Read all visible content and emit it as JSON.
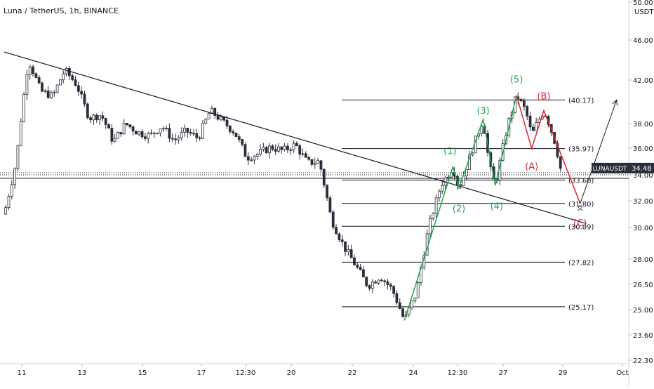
{
  "header": {
    "title": "Luna / TetherUS, 1h, BINANCE"
  },
  "chart_data": {
    "type": "candlestick",
    "symbol": "LUNAUSDT",
    "last_price": "34.48",
    "currency": "USDT",
    "price_axis": {
      "unit": "USDT",
      "tick_labels": [
        "50.00",
        "46.00",
        "42.00",
        "38.00",
        "36.00",
        "34.00",
        "32.00",
        "30.00",
        "28.00",
        "26.50",
        "25.00",
        "23.60",
        "22.30"
      ],
      "ylim": [
        22.0,
        50.5
      ],
      "scale": "log"
    },
    "time_axis": {
      "tick_labels": [
        "11",
        "13",
        "15",
        "17",
        "12:30",
        "20",
        "22",
        "24",
        "12:30",
        "27",
        "29",
        "Oct"
      ]
    },
    "price_path": [
      [
        0,
        31.0
      ],
      [
        4,
        35.0
      ],
      [
        8,
        44.0
      ],
      [
        12,
        41.0
      ],
      [
        16,
        40.5
      ],
      [
        20,
        43.0
      ],
      [
        24,
        41.5
      ],
      [
        28,
        38.5
      ],
      [
        32,
        38.8
      ],
      [
        36,
        36.5
      ],
      [
        40,
        38.0
      ],
      [
        44,
        37.3
      ],
      [
        48,
        37.0
      ],
      [
        52,
        37.8
      ],
      [
        56,
        36.6
      ],
      [
        60,
        37.4
      ],
      [
        64,
        36.8
      ],
      [
        68,
        39.2
      ],
      [
        72,
        38.2
      ],
      [
        76,
        37.3
      ],
      [
        80,
        35.3
      ],
      [
        84,
        35.6
      ],
      [
        88,
        36.1
      ],
      [
        92,
        35.8
      ],
      [
        96,
        36.3
      ],
      [
        100,
        34.9
      ],
      [
        104,
        35.0
      ],
      [
        108,
        30.5
      ],
      [
        112,
        28.8
      ],
      [
        116,
        27.6
      ],
      [
        120,
        26.4
      ],
      [
        124,
        27.0
      ],
      [
        128,
        26.2
      ],
      [
        132,
        24.4
      ],
      [
        136,
        26.0
      ],
      [
        140,
        30.0
      ],
      [
        144,
        33.2
      ],
      [
        148,
        34.6
      ],
      [
        150,
        33.0
      ],
      [
        154,
        35.6
      ],
      [
        158,
        38.4
      ],
      [
        160,
        34.7
      ],
      [
        162,
        33.2
      ],
      [
        166,
        37.8
      ],
      [
        169,
        40.6
      ],
      [
        172,
        39.2
      ],
      [
        174,
        37.0
      ],
      [
        176,
        38.2
      ],
      [
        178,
        39.2
      ],
      [
        180,
        37.8
      ],
      [
        182,
        36.2
      ],
      [
        184,
        33.9
      ]
    ],
    "fibonacci_levels": [
      {
        "label": "(40.17)",
        "value": 40.17
      },
      {
        "label": "(35.97)",
        "value": 35.97
      },
      {
        "label": "(33.60)",
        "value": 33.6
      },
      {
        "label": "(31.80)",
        "value": 31.8
      },
      {
        "label": "(30.09)",
        "value": 30.09
      },
      {
        "label": "(27.82)",
        "value": 27.82
      },
      {
        "label": "(25.17)",
        "value": 25.17
      }
    ],
    "trendline": {
      "start": [
        0,
        44.8
      ],
      "end": [
        192,
        30.3
      ]
    },
    "support_line": {
      "value": 34.0
    },
    "impulse_wave": {
      "color": "#22a64a",
      "points": [
        {
          "label": "",
          "t": 132,
          "price": 24.4
        },
        {
          "label": "(1)",
          "t": 148,
          "price": 34.6
        },
        {
          "label": "(2)",
          "t": 150,
          "price": 33.0
        },
        {
          "label": "(3)",
          "t": 158,
          "price": 38.4
        },
        {
          "label": "(4)",
          "t": 162,
          "price": 33.2
        },
        {
          "label": "(5)",
          "t": 169,
          "price": 40.6
        }
      ]
    },
    "corrective_wave": {
      "color": "#e0252b",
      "points": [
        {
          "label": "",
          "t": 169,
          "price": 40.6
        },
        {
          "label": "(A)",
          "t": 174,
          "price": 35.97
        },
        {
          "label": "(B)",
          "t": 178,
          "price": 39.2
        },
        {
          "label": "(C)",
          "t": 190,
          "price": 31.8
        }
      ]
    },
    "projection": {
      "start": [
        190,
        31.8
      ],
      "end": [
        202,
        40.17
      ]
    },
    "title": "Luna / TetherUS, 1h, BINANCE"
  }
}
